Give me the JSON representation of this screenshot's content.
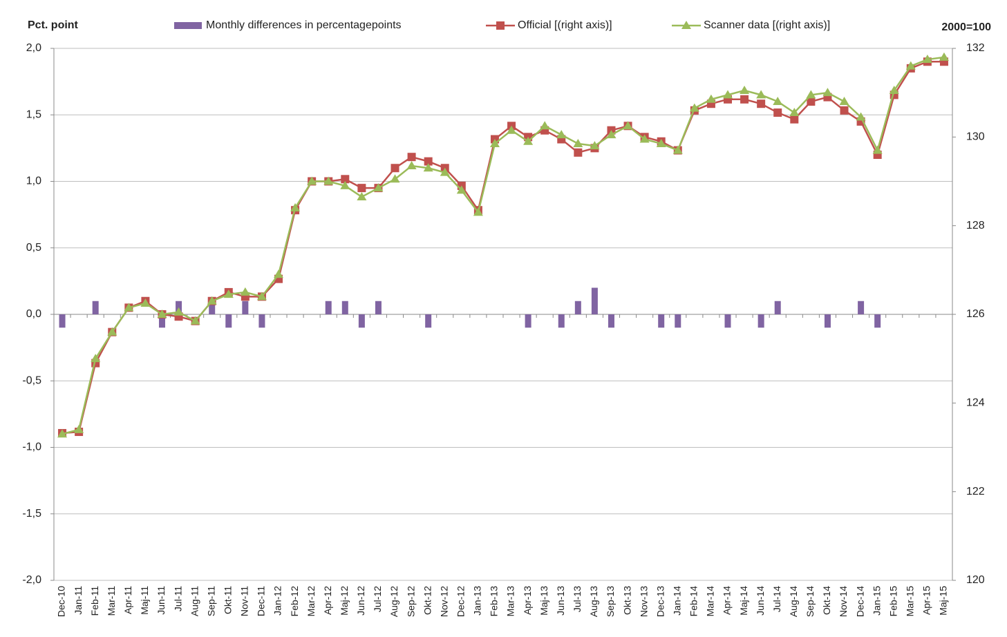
{
  "chart_data": {
    "type": "bar",
    "y_label": "Pct. point",
    "y2_label": "2000=100",
    "categories": [
      "Dec-10",
      "Jan-11",
      "Feb-11",
      "Mar-11",
      "Apr-11",
      "Maj-11",
      "Jun-11",
      "Jul-11",
      "Aug-11",
      "Sep-11",
      "Okt-11",
      "Nov-11",
      "Dec-11",
      "Jan-12",
      "Feb-12",
      "Mar-12",
      "Apr-12",
      "Maj-12",
      "Jun-12",
      "Jul-12",
      "Aug-12",
      "Sep-12",
      "Okt-12",
      "Nov-12",
      "Dec-12",
      "Jan-13",
      "Feb-13",
      "Mar-13",
      "Apr-13",
      "Maj-13",
      "Jun-13",
      "Jul-13",
      "Aug-13",
      "Sep-13",
      "Okt-13",
      "Nov-13",
      "Dec-13",
      "Jan-14",
      "Feb-14",
      "Mar-14",
      "Apr-14",
      "Maj-14",
      "Jun-14",
      "Jul-14",
      "Aug-14",
      "Sep-14",
      "Okt-14",
      "Nov-14",
      "Dec-14",
      "Jan-15",
      "Feb-15",
      "Mar-15",
      "Apr-15",
      "Maj-15"
    ],
    "series": [
      {
        "name": "Monthly differences in percentagepoints",
        "type": "bar",
        "color": "#8064a2",
        "values": [
          -0.1,
          0,
          0.1,
          0,
          0,
          0,
          -0.1,
          0.1,
          0,
          0.1,
          -0.1,
          0.1,
          -0.1,
          0,
          0,
          0,
          0.1,
          0.1,
          -0.1,
          0.1,
          0,
          0,
          -0.1,
          0,
          0,
          0,
          0,
          0,
          -0.1,
          0,
          -0.1,
          0.1,
          0.2,
          -0.1,
          0,
          0,
          -0.1,
          -0.1,
          0,
          0,
          -0.1,
          0,
          -0.1,
          0.1,
          0,
          0,
          -0.1,
          0,
          0.1,
          -0.1,
          0,
          0,
          0,
          0
        ]
      },
      {
        "name": "Official [(right axis)]",
        "type": "line",
        "marker": "square",
        "axis": "y2",
        "color": "#c0504d",
        "values": [
          123.32,
          123.35,
          124.9,
          125.6,
          126.15,
          126.3,
          126.0,
          125.95,
          125.85,
          126.3,
          126.5,
          126.4,
          126.4,
          126.8,
          128.35,
          129.0,
          129.0,
          129.05,
          128.85,
          128.85,
          129.3,
          129.55,
          129.45,
          129.3,
          128.9,
          128.35,
          129.95,
          130.25,
          130.0,
          130.15,
          129.95,
          129.65,
          129.75,
          130.15,
          130.25,
          130.0,
          129.9,
          129.7,
          130.6,
          130.75,
          130.85,
          130.85,
          130.75,
          130.55,
          130.4,
          130.8,
          130.9,
          130.6,
          130.35,
          129.6,
          130.95,
          131.55,
          131.7,
          131.7
        ]
      },
      {
        "name": "Scanner data [(right axis)]",
        "type": "line",
        "marker": "triangle",
        "axis": "y2",
        "color": "#9bbb59",
        "values": [
          123.3,
          123.4,
          125.0,
          125.6,
          126.15,
          126.25,
          126.0,
          126.05,
          125.85,
          126.3,
          126.45,
          126.5,
          126.4,
          126.9,
          128.4,
          129.0,
          129.0,
          128.9,
          128.65,
          128.85,
          129.05,
          129.35,
          129.3,
          129.2,
          128.8,
          128.3,
          129.85,
          130.15,
          129.9,
          130.25,
          130.05,
          129.85,
          129.8,
          130.05,
          130.25,
          129.95,
          129.85,
          129.7,
          130.65,
          130.85,
          130.95,
          131.05,
          130.95,
          130.8,
          130.55,
          130.95,
          131.0,
          130.8,
          130.45,
          129.7,
          131.05,
          131.6,
          131.75,
          131.8
        ]
      }
    ],
    "ylim": [
      -2,
      2
    ],
    "yticks": [
      {
        "value": -2,
        "label": "-2,0"
      },
      {
        "value": -1.5,
        "label": "-1,5"
      },
      {
        "value": -1,
        "label": "-1,0"
      },
      {
        "value": -0.5,
        "label": "-0,5"
      },
      {
        "value": 0,
        "label": "0,0"
      },
      {
        "value": 0.5,
        "label": "0,5"
      },
      {
        "value": 1,
        "label": "1,0"
      },
      {
        "value": 1.5,
        "label": "1,5"
      },
      {
        "value": 2,
        "label": "2,0"
      }
    ],
    "y2lim": [
      120,
      132
    ],
    "y2ticks": [
      120,
      122,
      124,
      126,
      128,
      130,
      132
    ],
    "grid": true,
    "legend": "top"
  }
}
